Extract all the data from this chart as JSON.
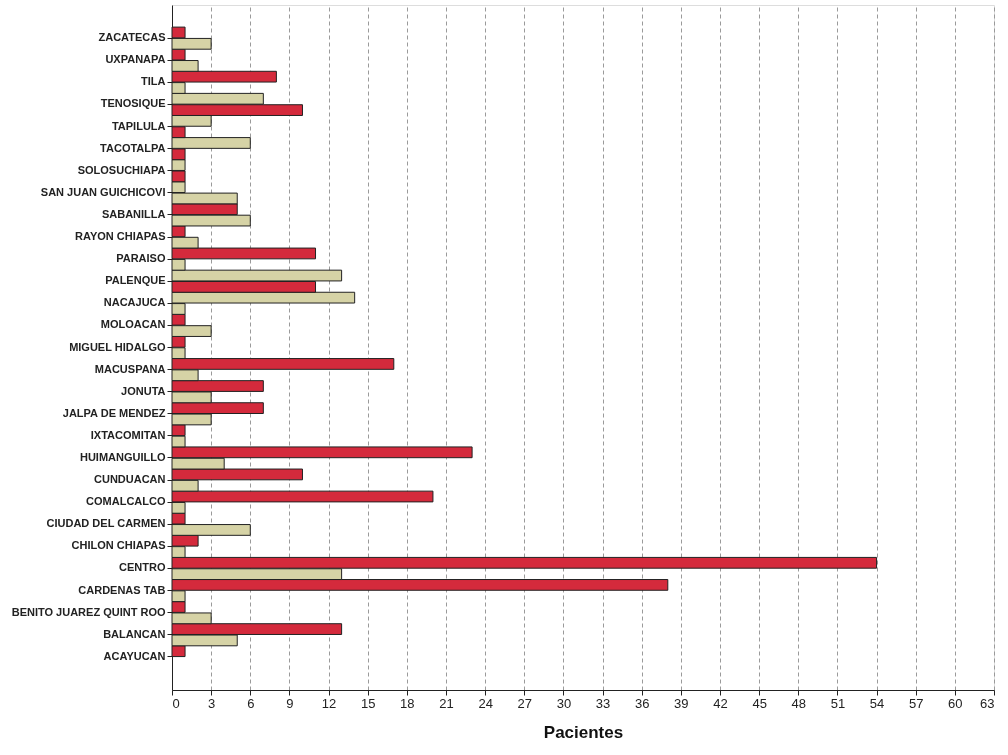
{
  "chart_data": {
    "type": "bar",
    "orientation": "horizontal",
    "xlabel": "Pacientes",
    "categories": [
      "ZACATECAS",
      "UXPANAPA",
      "TILA",
      "TENOSIQUE",
      "TAPILULA",
      "TACOTALPA",
      "SOLOSUCHIAPA",
      "SAN JUAN GUICHICOVI",
      "SABANILLA",
      "RAYON CHIAPAS",
      "PARAISO",
      "PALENQUE",
      "NACAJUCA",
      "MOLOACAN",
      "MIGUEL HIDALGO",
      "MACUSPANA",
      "JONUTA",
      "JALPA DE MENDEZ",
      "IXTACOMITAN",
      "HUIMANGUILLO",
      "CUNDUACAN",
      "COMALCALCO",
      "CIUDAD DEL CARMEN",
      "CHILON CHIAPAS",
      "CENTRO",
      "CARDENAS  TAB",
      "BENITO JUAREZ   QUINT ROO",
      "BALANCAN",
      "ACAYUCAN"
    ],
    "series": [
      {
        "values": [
          1,
          1,
          8,
          7,
          3,
          6,
          1,
          1,
          5,
          1,
          11,
          13,
          14,
          1,
          1,
          17,
          7,
          7,
          1,
          23,
          10,
          20,
          1,
          2,
          54,
          38,
          1,
          13,
          1
        ],
        "colors": [
          "#d42a3c",
          "#d42a3c",
          "#d42a3c",
          "#d6d3a6",
          "#d6d3a6",
          "#d6d3a6",
          "#d6d3a6",
          "#d6d3a6",
          "#d42a3c",
          "#d42a3c",
          "#d42a3c",
          "#d6d3a6",
          "#d6d3a6",
          "#d42a3c",
          "#d42a3c",
          "#d42a3c",
          "#d42a3c",
          "#d42a3c",
          "#d42a3c",
          "#d42a3c",
          "#d42a3c",
          "#d42a3c",
          "#d42a3c",
          "#d42a3c",
          "#d42a3c",
          "#d42a3c",
          "#d42a3c",
          "#d42a3c",
          "#d42a3c"
        ]
      },
      {
        "values": [
          3,
          2,
          1,
          10,
          1,
          1,
          1,
          5,
          6,
          2,
          1,
          11,
          1,
          3,
          1,
          2,
          3,
          3,
          1,
          4,
          2,
          1,
          6,
          1,
          13,
          1,
          3,
          5,
          null
        ],
        "colors": [
          "#d6d3a6",
          "#d6d3a6",
          "#d6d3a6",
          "#d42a3c",
          "#d42a3c",
          "#d42a3c",
          "#d42a3c",
          "#d6d3a6",
          "#d6d3a6",
          "#d6d3a6",
          "#d6d3a6",
          "#d42a3c",
          "#d6d3a6",
          "#d6d3a6",
          "#d6d3a6",
          "#d6d3a6",
          "#d6d3a6",
          "#d6d3a6",
          "#d6d3a6",
          "#d6d3a6",
          "#d6d3a6",
          "#d6d3a6",
          "#d6d3a6",
          "#d6d3a6",
          "#d6d3a6",
          "#d6d3a6",
          "#d6d3a6",
          "#d6d3a6",
          null
        ]
      }
    ],
    "xlim": [
      0,
      63
    ],
    "xticks": [
      0,
      3,
      6,
      9,
      12,
      15,
      18,
      21,
      24,
      27,
      30,
      33,
      36,
      39,
      42,
      45,
      48,
      51,
      54,
      57,
      60,
      63
    ],
    "grid": "x"
  }
}
